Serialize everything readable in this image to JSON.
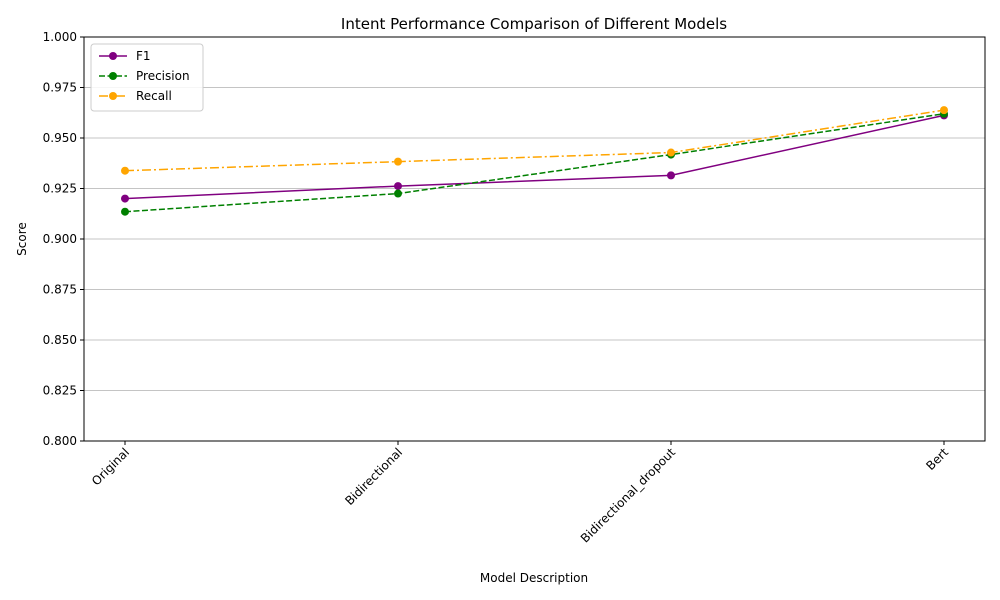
{
  "chart_data": {
    "type": "line",
    "title": "Intent Performance Comparison of Different Models",
    "xlabel": "Model Description",
    "ylabel": "Score",
    "categories": [
      "Original",
      "Bidirectional",
      "Bidirectional_dropout",
      "Bert"
    ],
    "ylim": [
      0.8,
      1.0
    ],
    "yticks": [
      "0.800",
      "0.825",
      "0.850",
      "0.875",
      "0.900",
      "0.925",
      "0.950",
      "0.975",
      "1.000"
    ],
    "grid": "horizontal",
    "legend_position": "top-left",
    "series": [
      {
        "name": "F1",
        "values": [
          0.92,
          0.9262,
          0.9315,
          0.9612
        ],
        "color": "#800080",
        "dash": "solid"
      },
      {
        "name": "Precision",
        "values": [
          0.9135,
          0.9225,
          0.9418,
          0.962
        ],
        "color": "#008000",
        "dash": "dashed"
      },
      {
        "name": "Recall",
        "values": [
          0.9338,
          0.9383,
          0.9428,
          0.9638
        ],
        "color": "#ffa500",
        "dash": "dashdot"
      }
    ]
  }
}
